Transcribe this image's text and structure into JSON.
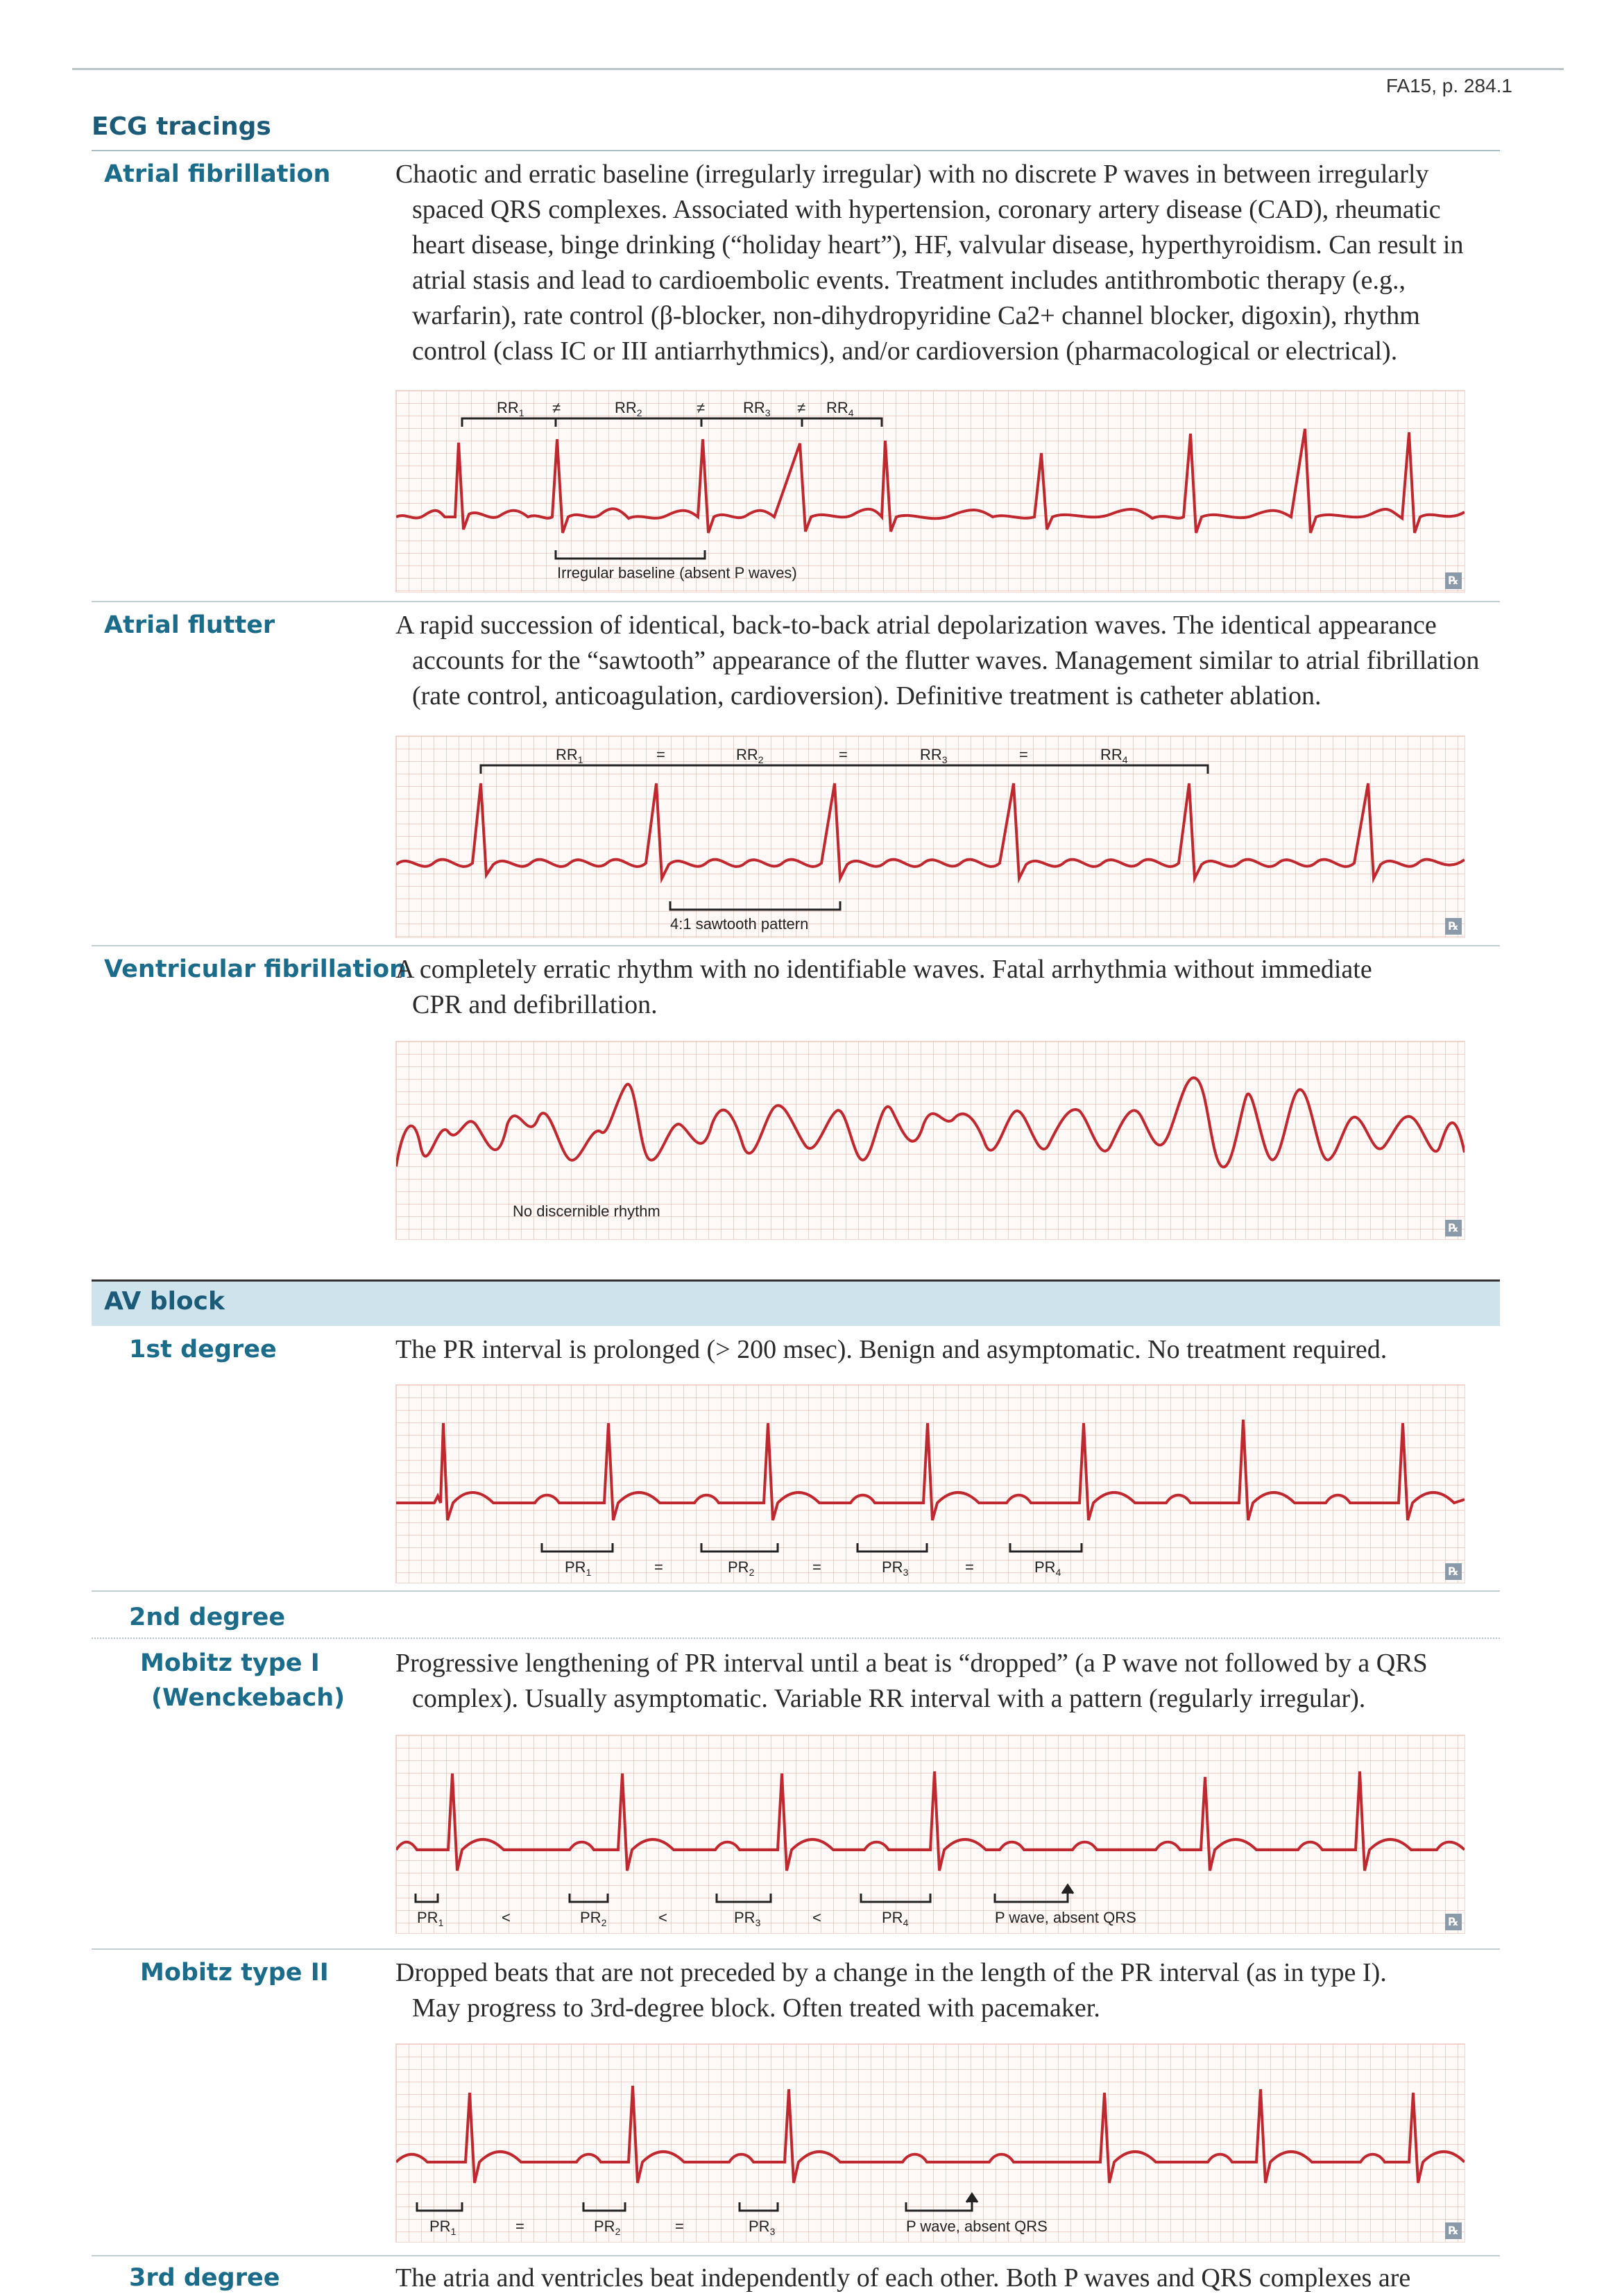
{
  "page_ref": "FA15, p. 284.1",
  "section_title": "ECG tracings",
  "entries": {
    "af": {
      "label": "Atrial fibrillation",
      "desc_first": "Chaotic and erratic baseline (irregularly irregular) with no discrete P waves in between irregularly",
      "desc_rest": "spaced QRS complexes. Associated with hypertension, coronary artery disease (CAD), rheumatic heart disease, binge drinking (“holiday heart”), HF, valvular disease, hyperthyroidism. Can result in atrial stasis and lead to cardioembolic events. Treatment includes antithrombotic therapy (e.g., warfarin), rate control (β-blocker, non-dihydropyridine Ca2+ channel blocker, digoxin), rhythm control (class IC or III antiarrhythmics), and/or cardioversion (pharmacological or electrical).",
      "annotation": "Irregular baseline (absent P waves)"
    },
    "aflutter": {
      "label": "Atrial flutter",
      "desc_first": "A rapid succession of identical, back-to-back atrial depolarization waves. The identical appearance",
      "desc_rest": "accounts for the “sawtooth” appearance of the flutter waves. Management similar to atrial fibrillation (rate control, anticoagulation, cardioversion). Definitive treatment is catheter ablation.",
      "annotation": "4:1 sawtooth pattern"
    },
    "vf": {
      "label": "Ventricular fibrillation",
      "desc_first": "A completely erratic rhythm with no identifiable waves. Fatal arrhythmia without immediate",
      "desc_rest": "CPR and defibrillation.",
      "annotation": "No discernible rhythm"
    },
    "first_degree": {
      "label": "1st degree",
      "desc_first": "The PR interval is prolonged (> 200 msec). Benign and asymptomatic. No treatment required.",
      "desc_rest": ""
    },
    "second_degree": {
      "label": "2nd degree"
    },
    "mobitz1": {
      "label_line1": "Mobitz type I",
      "label_line2": "(Wenckebach)",
      "desc_first": "Progressive lengthening of PR interval until a beat is “dropped” (a P wave not followed by a QRS",
      "desc_rest": "complex). Usually asymptomatic. Variable RR interval with a pattern (regularly irregular).",
      "annotation": "P wave, absent QRS"
    },
    "mobitz2": {
      "label": "Mobitz type II",
      "desc_first": "Dropped beats that are not preceded by a change in the length of the PR interval (as in type I).",
      "desc_rest": "May progress to 3rd-degree block. Often treated with pacemaker.",
      "annotation": "P wave, absent QRS"
    },
    "third_degree": {
      "label": "3rd degree",
      "desc_first": "The atria and ventricles beat independently of each other. Both P waves and QRS complexes are"
    }
  },
  "av_block_title": "AV block",
  "interval_labels": {
    "rr": [
      "RR1",
      "RR2",
      "RR3",
      "RR4"
    ],
    "pr": [
      "PR1",
      "PR2",
      "PR3",
      "PR4"
    ]
  },
  "signs": {
    "neq": "≠",
    "eq": "=",
    "lt": "<"
  },
  "rx_mark": "℞",
  "colors": {
    "ecg": "#c0282f",
    "heading": "#1b5b78",
    "band": "#cfe3ec"
  }
}
